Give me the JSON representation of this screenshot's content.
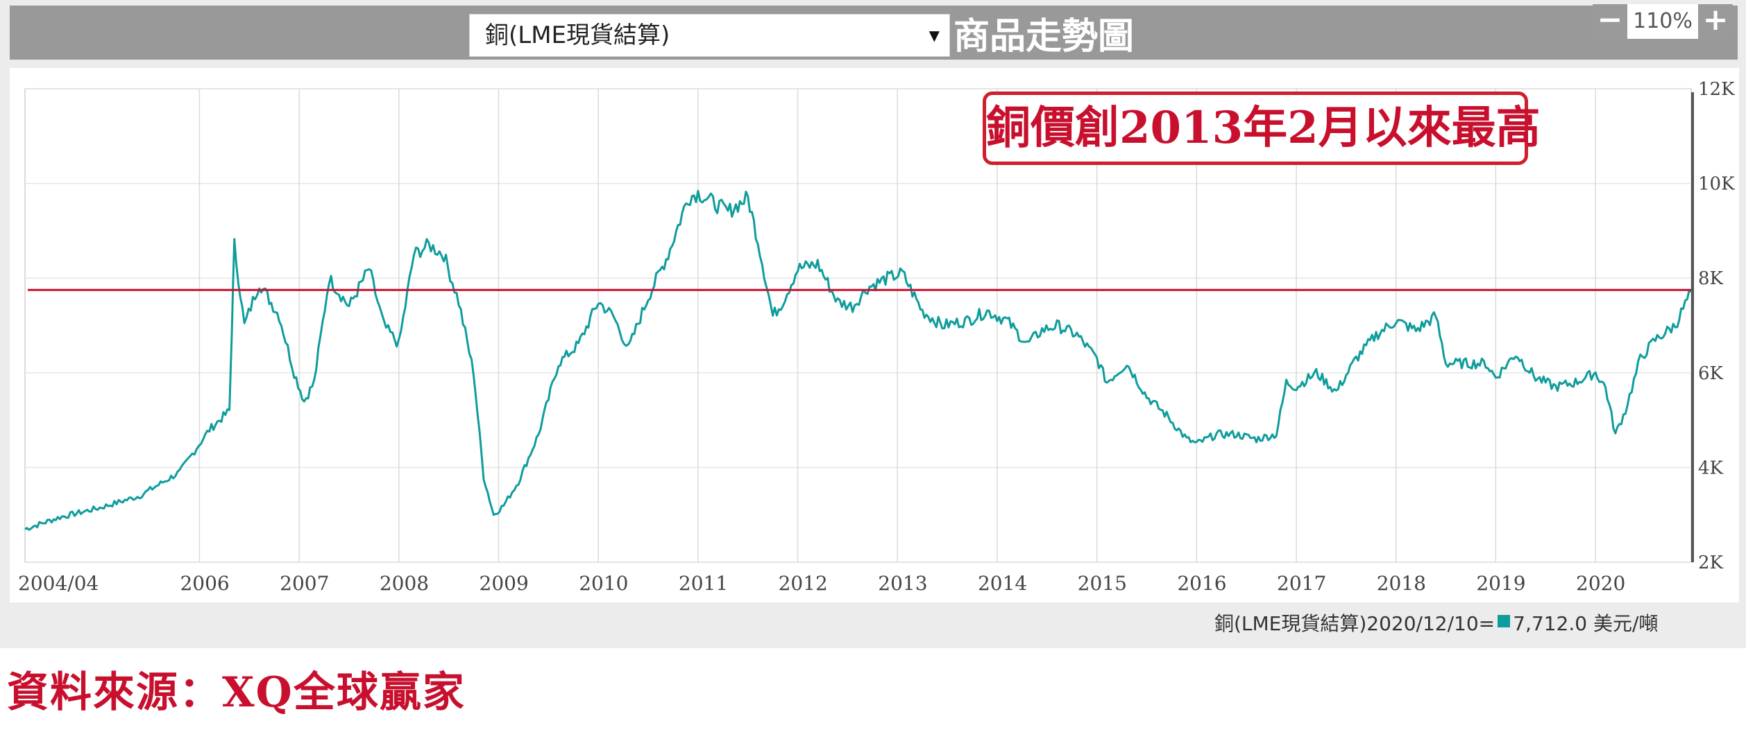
{
  "toolbar": {
    "selected_commodity": "銅(LME現貨結算)",
    "title": "商品走勢圖",
    "zoom_out_label": "−",
    "zoom_level": "110%",
    "zoom_in_label": "+"
  },
  "annotation": "銅價創2013年2月以來最高",
  "legend": {
    "label": "銅(LME現貨結算)2020/12/10=",
    "value": "7,712.0",
    "unit": "美元/噸"
  },
  "source": "資料來源：XQ全球贏家",
  "colors": {
    "series": "#0f9c9c",
    "reference_line": "#c8102e",
    "toolbar": "#999999"
  },
  "chart_data": {
    "type": "line",
    "title": "商品走勢圖",
    "series_name": "銅(LME現貨結算)",
    "unit": "美元/噸",
    "x_range": [
      2004.25,
      2020.96
    ],
    "ylim": [
      2000,
      12000
    ],
    "y_ticks": [
      2000,
      4000,
      6000,
      8000,
      10000,
      12000
    ],
    "y_tick_labels": [
      "2K",
      "4K",
      "6K",
      "8K",
      "10K",
      "12K"
    ],
    "x_ticks": [
      2004.25,
      2006,
      2007,
      2008,
      2009,
      2010,
      2011,
      2012,
      2013,
      2014,
      2015,
      2016,
      2017,
      2018,
      2019,
      2020
    ],
    "x_tick_labels": [
      "2004/04",
      "2006",
      "2007",
      "2008",
      "2009",
      "2010",
      "2011",
      "2012",
      "2013",
      "2014",
      "2015",
      "2016",
      "2017",
      "2018",
      "2019",
      "2020"
    ],
    "reference_line": 7750,
    "grid": true,
    "x": [
      2004.25,
      2004.6,
      2005.0,
      2005.4,
      2005.8,
      2006.1,
      2006.3,
      2006.35,
      2006.45,
      2006.6,
      2006.8,
      2006.95,
      2007.05,
      2007.15,
      2007.3,
      2007.5,
      2007.7,
      2007.85,
      2008.0,
      2008.15,
      2008.3,
      2008.45,
      2008.6,
      2008.75,
      2008.85,
      2008.95,
      2009.05,
      2009.2,
      2009.4,
      2009.6,
      2009.8,
      2010.0,
      2010.15,
      2010.3,
      2010.5,
      2010.7,
      2010.9,
      2011.0,
      2011.15,
      2011.3,
      2011.5,
      2011.6,
      2011.75,
      2011.85,
      2012.0,
      2012.2,
      2012.4,
      2012.55,
      2012.7,
      2012.9,
      2013.05,
      2013.25,
      2013.45,
      2013.7,
      2013.9,
      2014.1,
      2014.3,
      2014.45,
      2014.6,
      2014.8,
      2015.0,
      2015.1,
      2015.3,
      2015.5,
      2015.7,
      2015.9,
      2016.0,
      2016.2,
      2016.4,
      2016.6,
      2016.8,
      2016.9,
      2017.0,
      2017.2,
      2017.4,
      2017.6,
      2017.8,
      2018.0,
      2018.2,
      2018.4,
      2018.5,
      2018.7,
      2018.9,
      2019.0,
      2019.2,
      2019.4,
      2019.6,
      2019.8,
      2020.0,
      2020.1,
      2020.2,
      2020.3,
      2020.45,
      2020.6,
      2020.8,
      2020.96
    ],
    "y": [
      2700,
      2950,
      3150,
      3400,
      3900,
      4800,
      5200,
      8700,
      7000,
      7900,
      7200,
      6000,
      5400,
      5800,
      8000,
      7400,
      8200,
      7000,
      6600,
      8500,
      8700,
      8500,
      7500,
      6000,
      3800,
      3000,
      3200,
      3700,
      4700,
      6200,
      6600,
      7500,
      7200,
      6500,
      7600,
      8500,
      9700,
      9800,
      9600,
      9400,
      9700,
      8800,
      7200,
      7500,
      8200,
      8300,
      7500,
      7400,
      7800,
      8000,
      8100,
      7300,
      7000,
      7100,
      7300,
      7100,
      6600,
      6900,
      7000,
      6800,
      6300,
      5800,
      6200,
      5500,
      5100,
      4600,
      4500,
      4700,
      4700,
      4600,
      4700,
      5800,
      5700,
      6000,
      5600,
      6300,
      6800,
      7100,
      6900,
      7200,
      6200,
      6200,
      6200,
      5900,
      6400,
      5900,
      5700,
      5800,
      6000,
      5700,
      4700,
      5200,
      6300,
      6700,
      7000,
      7712
    ]
  }
}
